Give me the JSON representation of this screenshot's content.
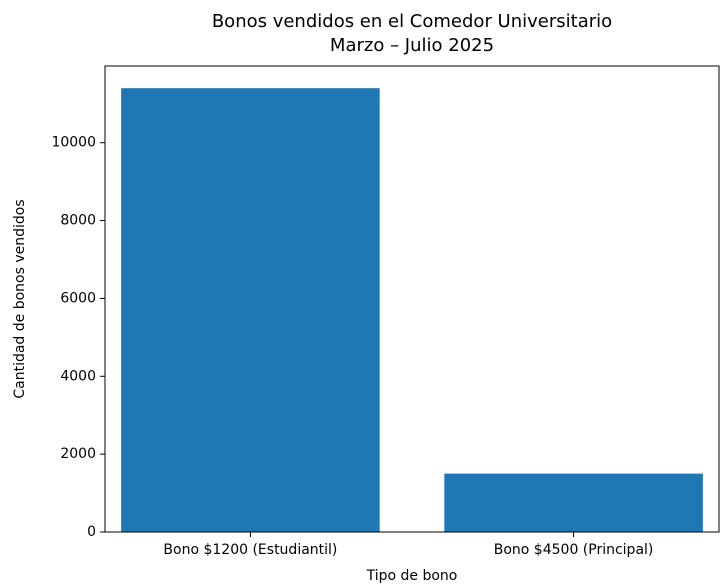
{
  "chart_data": {
    "type": "bar",
    "title": [
      "Bonos vendidos en el Comedor Universitario",
      "Marzo – Julio 2025"
    ],
    "x_label": "Tipo de bono",
    "y_label": "Cantidad de bonos vendidos",
    "categories": [
      "Bono $1200 (Estudiantil)",
      "Bono $4500 (Principal)"
    ],
    "values": [
      11400,
      1500
    ],
    "color": "#1f77b4",
    "ylim": [
      0,
      11970
    ],
    "yticks": [
      0,
      2000,
      4000,
      6000,
      8000,
      10000
    ],
    "grid": false
  }
}
